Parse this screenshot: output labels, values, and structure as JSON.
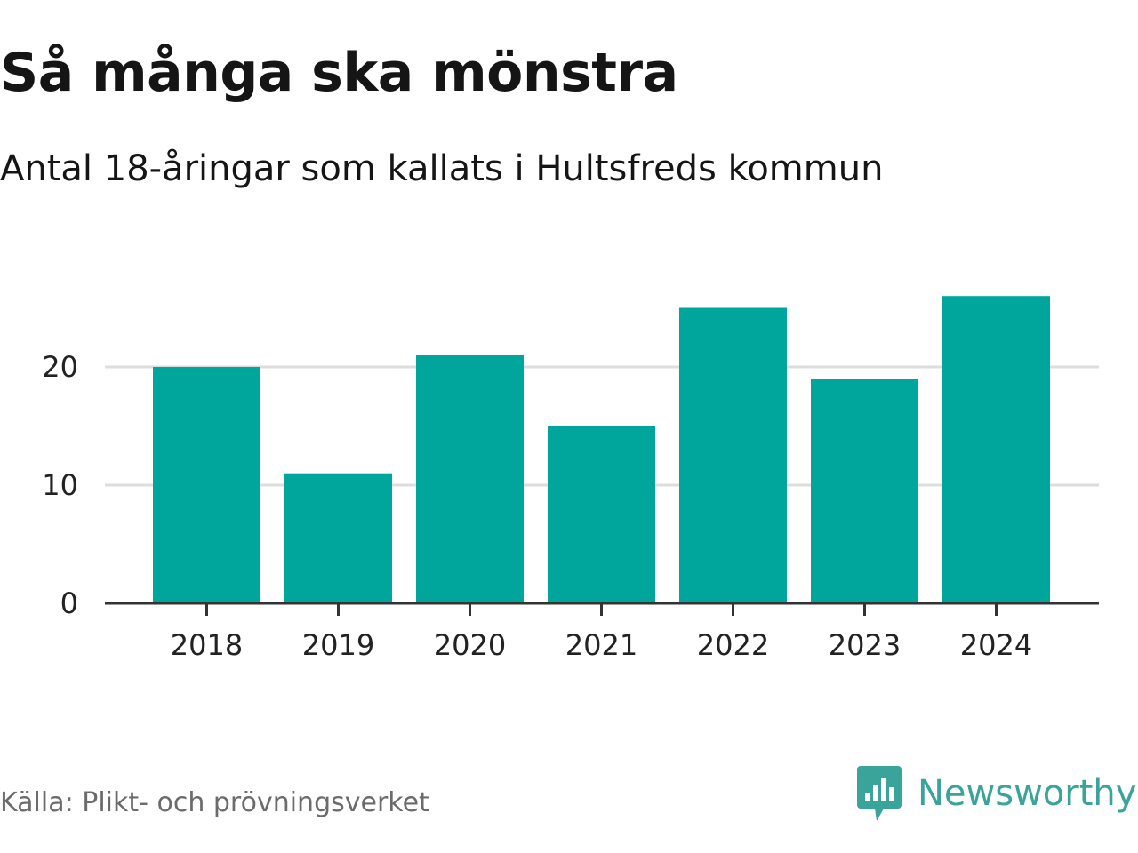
{
  "header": {
    "title": "Så många ska mönstra",
    "subtitle": "Antal 18-åringar som kallats i Hultsfreds kommun"
  },
  "footer": {
    "source": "Källa: Plikt- och prövningsverket",
    "brand": "Newsworthy",
    "brand_icon": "newsworthy-logo-icon"
  },
  "colors": {
    "bar": "#00a59b",
    "grid": "#dddddd",
    "axis": "#333333",
    "brand": "#3aa39a"
  },
  "chart_data": {
    "type": "bar",
    "categories": [
      "2018",
      "2019",
      "2020",
      "2021",
      "2022",
      "2023",
      "2024"
    ],
    "values": [
      20,
      11,
      21,
      15,
      25,
      19,
      26
    ],
    "yticks": [
      "0",
      "10",
      "20"
    ],
    "ylim": [
      0,
      27
    ],
    "grid": true,
    "legend": "none"
  }
}
